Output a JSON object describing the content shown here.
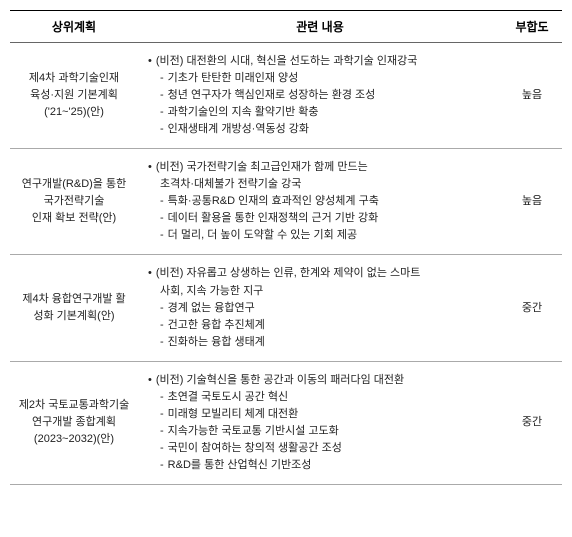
{
  "headers": {
    "plan": "상위계획",
    "content": "관련 내용",
    "fit": "부합도"
  },
  "rows": [
    {
      "plan_lines": [
        "제4차 과학기술인재",
        "육성·지원 기본계획",
        "('21~'25)(안)"
      ],
      "items": [
        {
          "type": "bullet",
          "text": "(비전) 대전환의 시대, 혁신을 선도하는 과학기술 인재강국"
        },
        {
          "type": "dash",
          "text": "기초가 탄탄한 미래인재 양성"
        },
        {
          "type": "dash",
          "text": "청년 연구자가 핵심인재로 성장하는 환경 조성"
        },
        {
          "type": "dash",
          "text": "과학기술인의 지속 활약기반 확충"
        },
        {
          "type": "dash",
          "text": "인재생태계 개방성·역동성 강화"
        }
      ],
      "fit": "높음"
    },
    {
      "plan_lines": [
        "연구개발(R&D)을 통한",
        "국가전략기술",
        "인재 확보 전략(안)"
      ],
      "items": [
        {
          "type": "bullet",
          "text": "(비전) 국가전략기술 최고급인재가 함께 만드는"
        },
        {
          "type": "plain",
          "text": "초격차·대체불가 전략기술 강국"
        },
        {
          "type": "dash",
          "text": "특화·공통R&D 인재의 효과적인 양성체계 구축"
        },
        {
          "type": "dash",
          "text": "데이터 활용을 통한 인재정책의 근거 기반 강화"
        },
        {
          "type": "dash",
          "text": "더 멀리, 더 높이 도약할 수 있는 기회 제공"
        }
      ],
      "fit": "높음"
    },
    {
      "plan_lines": [
        "제4차 융합연구개발 활",
        "성화 기본계획(안)"
      ],
      "items": [
        {
          "type": "bullet",
          "text": "(비전) 자유롭고 상생하는 인류, 한계와 제약이 없는 스마트"
        },
        {
          "type": "plain",
          "text": "사회, 지속 가능한 지구"
        },
        {
          "type": "dash",
          "text": "경계 없는 융합연구"
        },
        {
          "type": "dash",
          "text": "건고한 융합 추진체계"
        },
        {
          "type": "dash",
          "text": "진화하는 융합 생태계"
        }
      ],
      "fit": "중간"
    },
    {
      "plan_lines": [
        "제2차 국토교통과학기술",
        "연구개발 종합계획",
        "(2023~2032)(안)"
      ],
      "items": [
        {
          "type": "bullet",
          "text": "(비전) 기술혁신을 통한 공간과 이동의 패러다임 대전환"
        },
        {
          "type": "dash",
          "text": "초연결 국토도시 공간 혁신"
        },
        {
          "type": "dash",
          "text": "미래형 모빌리티 체계 대전환"
        },
        {
          "type": "dash",
          "text": "지속가능한 국토교통 기반시설 고도화"
        },
        {
          "type": "dash",
          "text": "국민이 참여하는 창의적 생활공간 조성"
        },
        {
          "type": "dash",
          "text": "R&D를 통한 산업혁신 기반조성"
        }
      ],
      "fit": "중간"
    }
  ]
}
